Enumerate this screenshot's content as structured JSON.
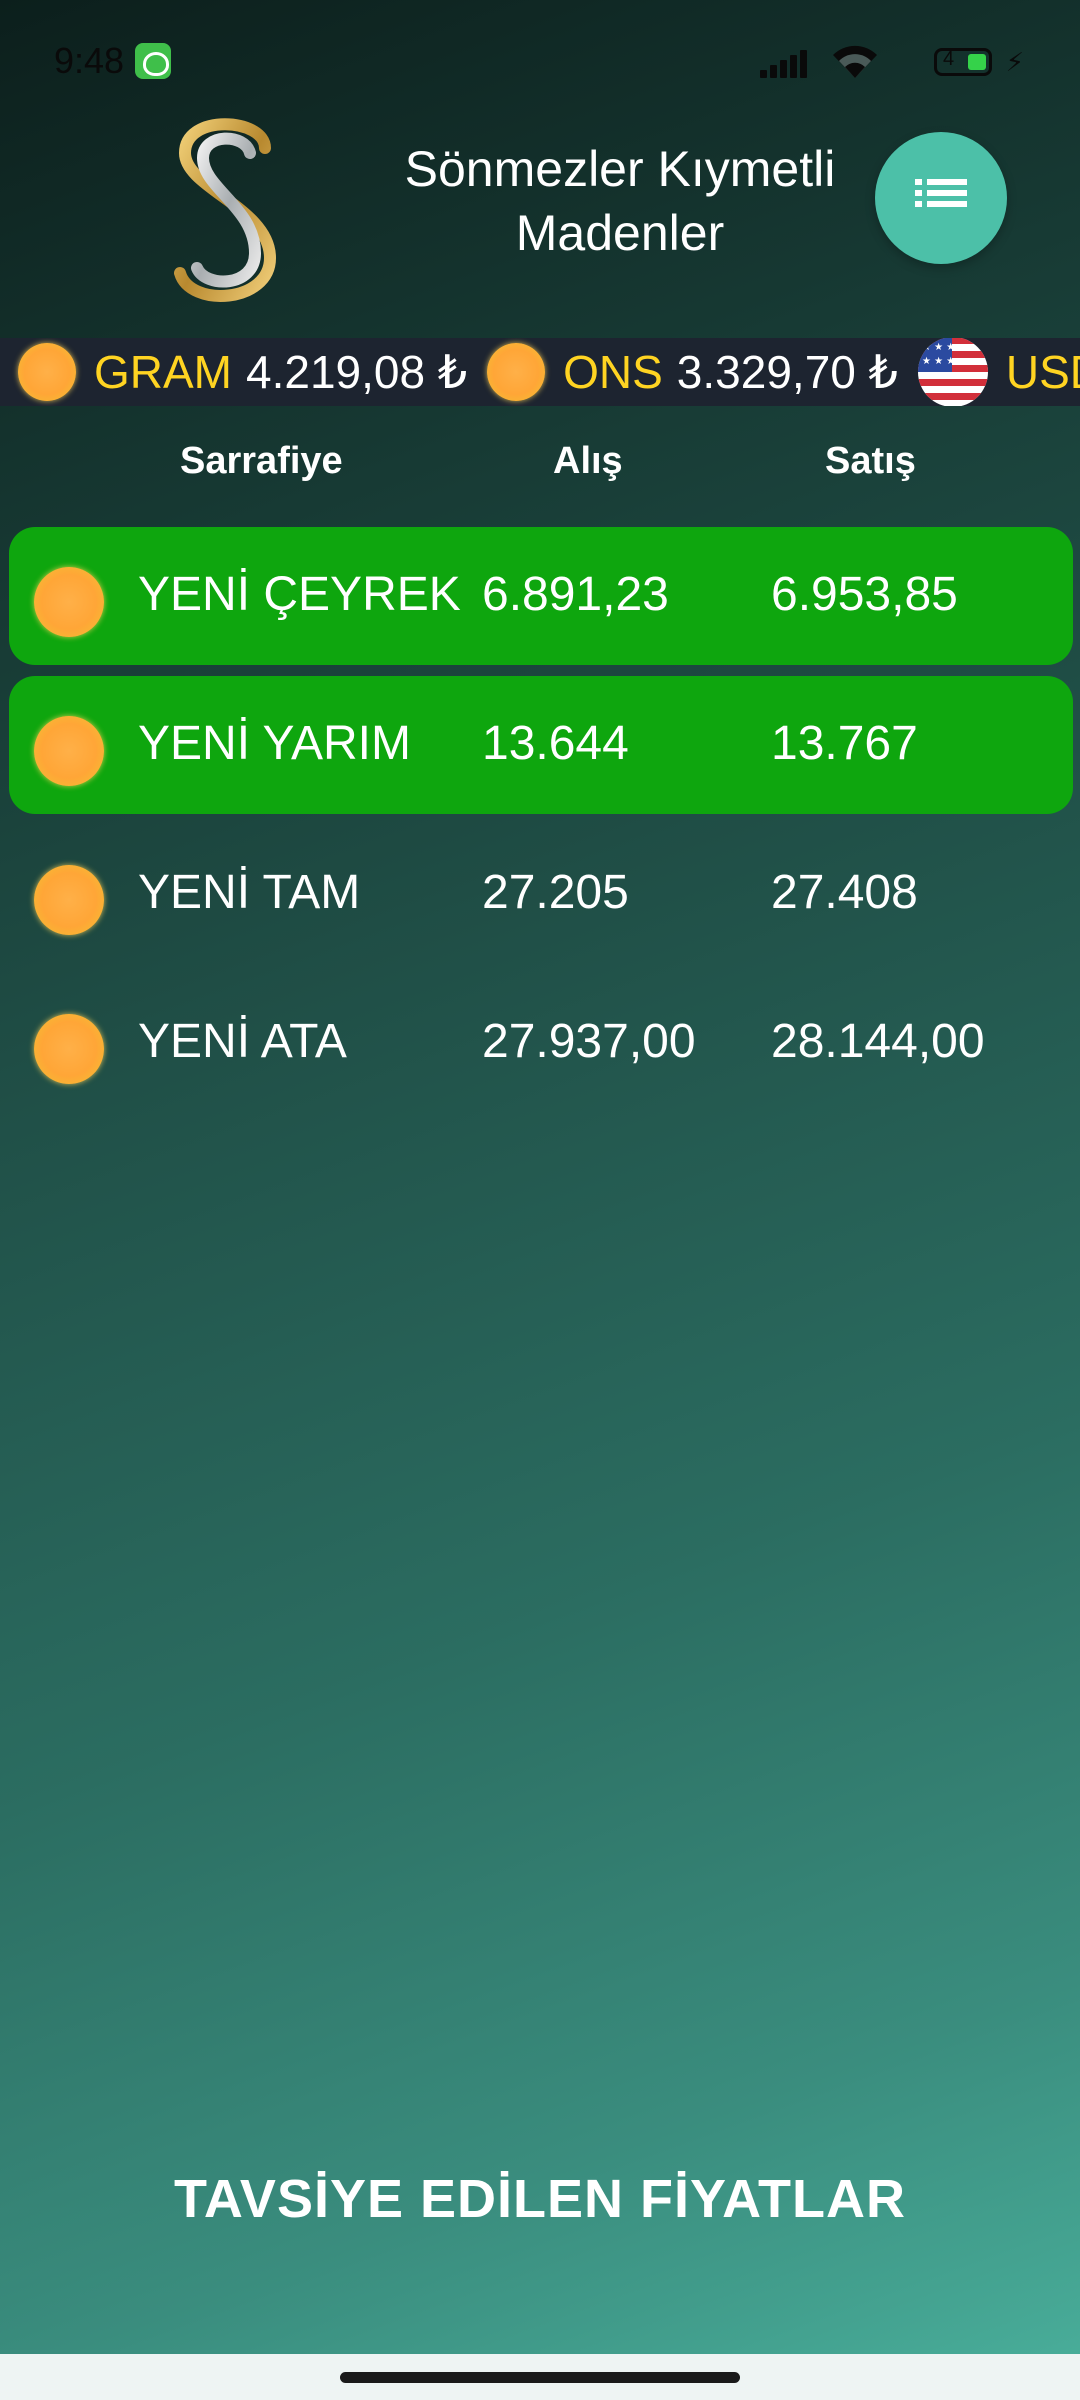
{
  "status_bar": {
    "time": "9:48",
    "battery_level": "4"
  },
  "header": {
    "app_title": "Sönmezler Kıymetli Madenler"
  },
  "ticker": [
    {
      "name": "GRAM",
      "value": "4.219,08 ₺",
      "icon": "gold-coin-icon"
    },
    {
      "name": "ONS",
      "value": "3.329,70 ₺",
      "icon": "gold-coin-icon"
    },
    {
      "name": "USD",
      "value": "",
      "icon": "us-flag-icon"
    }
  ],
  "table": {
    "headers": {
      "name": "Sarrafiye",
      "buy": "Alış",
      "sell": "Satış"
    },
    "rows": [
      {
        "name": "YENİ ÇEYREK",
        "buy": "6.891,23",
        "sell": "6.953,85",
        "highlighted": true
      },
      {
        "name": "YENİ YARIM",
        "buy": "13.644",
        "sell": "13.767",
        "highlighted": true
      },
      {
        "name": "YENİ TAM",
        "buy": "27.205",
        "sell": "27.408",
        "highlighted": false
      },
      {
        "name": "YENİ ATA",
        "buy": "27.937,00",
        "sell": "28.144,00",
        "highlighted": false
      }
    ]
  },
  "footer": {
    "title": "TAVSİYE EDİLEN FİYATLAR"
  },
  "colors": {
    "highlight_row": "#0ea60e",
    "ticker_name": "#ffd422",
    "menu_button": "#4cc0a8"
  }
}
